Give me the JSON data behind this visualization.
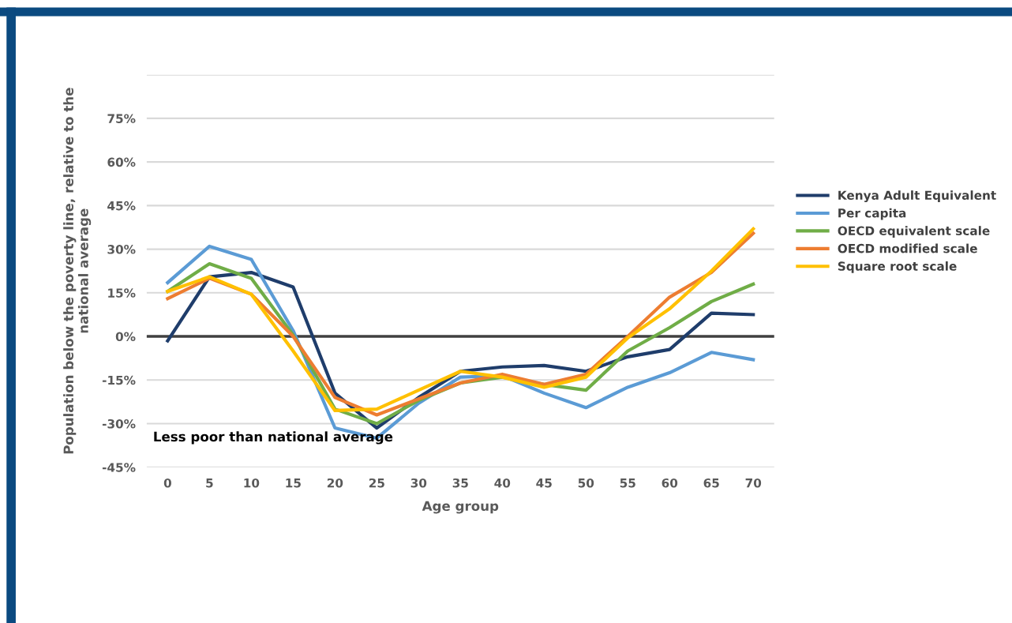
{
  "chart_data": {
    "type": "line",
    "xlabel": "Age group",
    "ylabel": "Population below the poverty line, relative to the\nnational average",
    "categories": [
      "0",
      "5",
      "10",
      "15",
      "20",
      "25",
      "30",
      "35",
      "40",
      "45",
      "50",
      "55",
      "60",
      "65",
      "70"
    ],
    "series": [
      {
        "name": "Kenya Adult Equivalent",
        "color": "#1f3d6b",
        "values": [
          -1.5,
          20.5,
          22,
          17,
          -19.5,
          -31.5,
          -21,
          -12,
          -10.5,
          -10,
          -12,
          -7,
          -4.5,
          8,
          7.5
        ]
      },
      {
        "name": "Per capita",
        "color": "#5b9bd5",
        "values": [
          18.5,
          31,
          26.5,
          2,
          -31.5,
          -35,
          -23,
          -14,
          -13.5,
          -19.5,
          -24.5,
          -17.5,
          -12.5,
          -5.5,
          -8
        ]
      },
      {
        "name": "OECD equivalent scale",
        "color": "#70ad47",
        "values": [
          15.5,
          25,
          20,
          0.5,
          -25,
          -30,
          -22,
          -16,
          -14,
          -16.5,
          -18.5,
          -5,
          3,
          12,
          18
        ]
      },
      {
        "name": "OECD modified scale",
        "color": "#ed7d31",
        "values": [
          13,
          20,
          14.5,
          0,
          -21,
          -27,
          -21.5,
          -16,
          -13,
          -16.5,
          -13,
          0,
          13.5,
          22,
          35.5
        ]
      },
      {
        "name": "Square root scale",
        "color": "#ffc000",
        "values": [
          15.5,
          20.5,
          14.5,
          -5,
          -25.5,
          -25,
          -18.5,
          -12,
          -14,
          -17.5,
          -14,
          -0.5,
          9.5,
          22.5,
          37
        ]
      }
    ],
    "ylim": [
      -45,
      90
    ],
    "yticks": [
      {
        "value": -45,
        "label": "-45%"
      },
      {
        "value": -30,
        "label": "-30%"
      },
      {
        "value": -15,
        "label": "-15%"
      },
      {
        "value": 0,
        "label": "0%"
      },
      {
        "value": 15,
        "label": "15%"
      },
      {
        "value": 30,
        "label": "30%"
      },
      {
        "value": 45,
        "label": "45%"
      },
      {
        "value": 60,
        "label": "60%"
      },
      {
        "value": 75,
        "label": "75%"
      },
      {
        "value": 90,
        "label": null
      }
    ],
    "ref_lines": [
      {
        "axis": "y",
        "value": 0,
        "color": "#404040"
      }
    ],
    "annotations": [
      "Less poor than national average"
    ],
    "grid": "y",
    "legend": "right",
    "line_style": "solid",
    "marker": "none"
  }
}
